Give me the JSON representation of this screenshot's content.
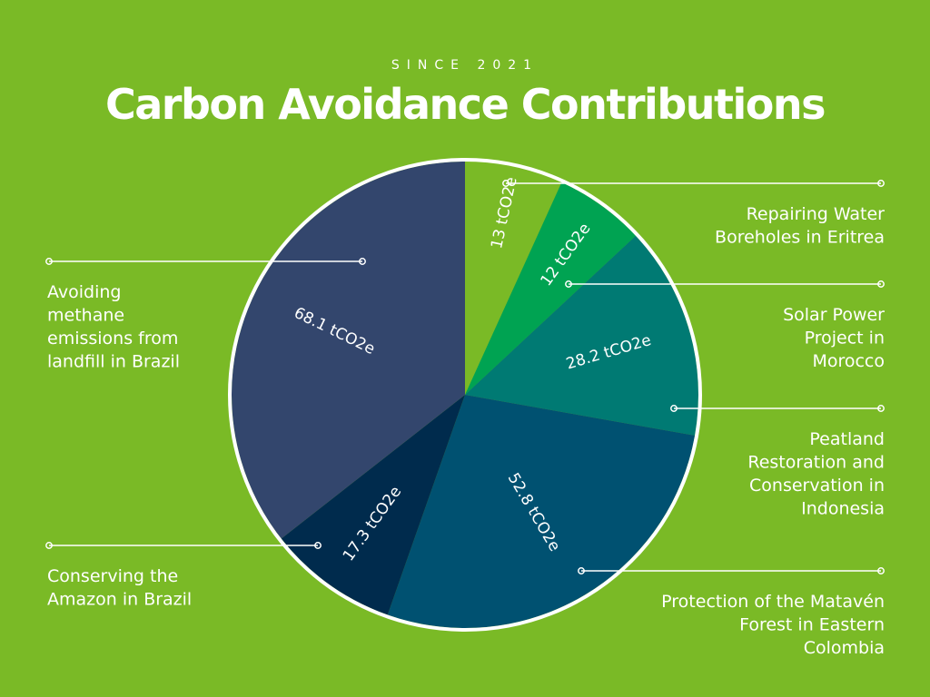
{
  "header": {
    "subtitle": "SINCE 2021",
    "title": "Carbon Avoidance Contributions"
  },
  "colors": {
    "background": "#7aba26",
    "outline": "#ffffff"
  },
  "chart_data": {
    "type": "pie",
    "title": "Carbon Avoidance Contributions",
    "subtitle": "SINCE 2021",
    "unit": "tCO2e",
    "slices": [
      {
        "name": "Repairing Water Boreholes in Eritrea",
        "value": 13,
        "label": "13 tCO2e",
        "color": "#7aba26"
      },
      {
        "name": "Solar Power Project in Morocco",
        "value": 12,
        "label": "12 tCO2e",
        "color": "#00a352"
      },
      {
        "name": "Peatland Restoration and Conservation in Indonesia",
        "value": 28.2,
        "label": "28.2 tCO2e",
        "color": "#007a73"
      },
      {
        "name": "Protection of the Matavén Forest in Eastern Colombia",
        "value": 52.8,
        "label": "52.8 tCO2e",
        "color": "#005171"
      },
      {
        "name": "Conserving the Amazon in Brazil",
        "value": 17.3,
        "label": "17.3 tCO2e",
        "color": "#002b4d"
      },
      {
        "name": "Avoiding methane emissions from landfill in Brazil",
        "value": 68.1,
        "label": "68.1 tCO2e",
        "color": "#33466d"
      }
    ],
    "callouts": [
      {
        "slice": 0,
        "lines": [
          "Repairing Water",
          "Boreholes in Eritrea"
        ]
      },
      {
        "slice": 1,
        "lines": [
          "Solar Power",
          "Project in",
          "Morocco"
        ]
      },
      {
        "slice": 2,
        "lines": [
          "Peatland",
          "Restoration and",
          "Conservation in",
          "Indonesia"
        ]
      },
      {
        "slice": 3,
        "lines": [
          "Protection of the Matavén",
          "Forest in Eastern",
          "Colombia"
        ]
      },
      {
        "slice": 4,
        "lines": [
          "Conserving the",
          "Amazon in Brazil"
        ]
      },
      {
        "slice": 5,
        "lines": [
          "Avoiding",
          "methane",
          "emissions from",
          "landfill in Brazil"
        ]
      }
    ]
  }
}
